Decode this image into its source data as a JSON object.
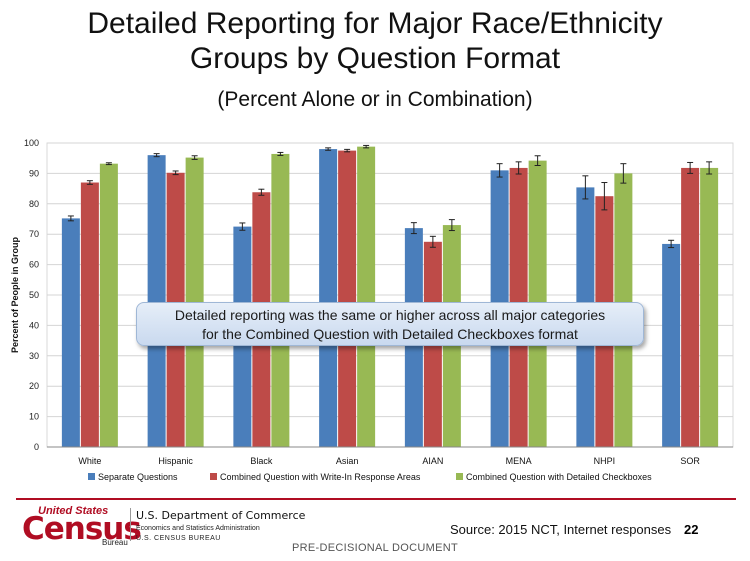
{
  "slide": {
    "title_line1": "Detailed Reporting for Major Race/Ethnicity",
    "title_line2": "Groups by Question Format",
    "subtitle": "(Percent Alone or in Combination)",
    "callout_line1": "Detailed reporting was the same or higher across all major categories",
    "callout_line2": "for the Combined Question with Detailed Checkboxes format",
    "source": "Source:  2015 NCT, Internet responses",
    "page_number": "22",
    "watermark": "PRE-DECISIONAL DOCUMENT"
  },
  "logo": {
    "top_text": "United States",
    "main_text": "Census",
    "bureau_text": "Bureau"
  },
  "department": {
    "line1": "U.S. Department of Commerce",
    "line2": "Economics and Statistics Administration",
    "line3": "U.S. CENSUS BUREAU"
  },
  "colors": {
    "series": [
      "#4a7ebb",
      "#be4b48",
      "#98b954"
    ],
    "brand": "#b00d23"
  },
  "chart_data": {
    "type": "bar",
    "ylabel": "Percent of People in Group",
    "ylim": [
      0,
      100
    ],
    "yticks": [
      0,
      10,
      20,
      30,
      40,
      50,
      60,
      70,
      80,
      90,
      100
    ],
    "grid": true,
    "legend_position": "bottom",
    "categories": [
      "White",
      "Hispanic",
      "Black",
      "Asian",
      "AIAN",
      "MENA",
      "NHPI",
      "SOR"
    ],
    "series": [
      {
        "name": "Separate Questions",
        "values": [
          75.2,
          96.0,
          72.5,
          98.0,
          72.0,
          91.0,
          85.4,
          66.8
        ],
        "errors": [
          0.8,
          0.5,
          1.2,
          0.4,
          1.8,
          2.2,
          3.8,
          1.2
        ]
      },
      {
        "name": "Combined Question with Write-In Response Areas",
        "values": [
          87.0,
          90.2,
          83.8,
          97.5,
          67.5,
          91.8,
          82.5,
          91.8
        ],
        "errors": [
          0.6,
          0.6,
          1.0,
          0.4,
          1.8,
          2.0,
          4.5,
          1.8
        ]
      },
      {
        "name": "Combined Question with Detailed Checkboxes",
        "values": [
          93.2,
          95.2,
          96.4,
          98.8,
          73.0,
          94.2,
          90.0,
          91.8
        ],
        "errors": [
          0.3,
          0.6,
          0.5,
          0.4,
          1.8,
          1.6,
          3.2,
          2.0
        ]
      }
    ]
  }
}
